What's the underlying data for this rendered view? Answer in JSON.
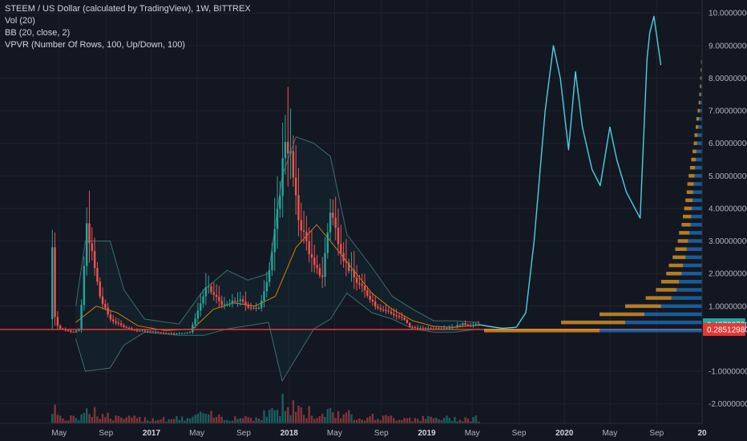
{
  "header": {
    "symbol_line": "STEEM / US Dollar (calculated by TradingView), 1W, BITTREX",
    "indicators": [
      "Vol (20)",
      "BB (20, close, 2)",
      "VPVR (Number Of Rows, 100, Up/Down, 100)"
    ]
  },
  "colors": {
    "background": "#131722",
    "up": "#26a69a",
    "down": "#ef5350",
    "drawing": "#4dd0e1",
    "bb_band": "#3c6e71",
    "bb_basis": "#ff9800",
    "vpvr_up": "#2196f3",
    "vpvr_down": "#f9a825",
    "hline": "#e53935",
    "current_price_tag": "#26a69a",
    "hline_price_tag": "#e53935"
  },
  "chart_data": {
    "type": "candlestick",
    "y_axis": {
      "min": -2.6,
      "max": 10.4,
      "ticks": [
        "10.00000000",
        "9.00000000",
        "8.00000000",
        "7.00000000",
        "6.00000000",
        "5.00000000",
        "4.00000000",
        "3.00000000",
        "2.00000000",
        "1.00000000",
        "-1.00000000",
        "-2.00000000"
      ],
      "tick_values": [
        10,
        9,
        8,
        7,
        6,
        5,
        4,
        3,
        2,
        1,
        -1,
        -2
      ]
    },
    "x_axis": {
      "ticks": [
        {
          "label": "May",
          "bold": false,
          "t": 2016.33
        },
        {
          "label": "Sep",
          "bold": false,
          "t": 2016.67
        },
        {
          "label": "2017",
          "bold": true,
          "t": 2017.0
        },
        {
          "label": "May",
          "bold": false,
          "t": 2017.33
        },
        {
          "label": "Sep",
          "bold": false,
          "t": 2017.67
        },
        {
          "label": "2018",
          "bold": true,
          "t": 2018.0
        },
        {
          "label": "May",
          "bold": false,
          "t": 2018.33
        },
        {
          "label": "Sep",
          "bold": false,
          "t": 2018.67
        },
        {
          "label": "2019",
          "bold": true,
          "t": 2019.0
        },
        {
          "label": "May",
          "bold": false,
          "t": 2019.33
        },
        {
          "label": "Sep",
          "bold": false,
          "t": 2019.67
        },
        {
          "label": "2020",
          "bold": true,
          "t": 2020.0
        },
        {
          "label": "May",
          "bold": false,
          "t": 2020.33
        },
        {
          "label": "Sep",
          "bold": false,
          "t": 2020.67
        },
        {
          "label": "20",
          "bold": true,
          "t": 2021.0
        }
      ]
    },
    "price_anchors": [
      [
        2016.28,
        0.6
      ],
      [
        2016.3,
        2.9
      ],
      [
        2016.32,
        0.5
      ],
      [
        2016.36,
        0.3
      ],
      [
        2016.45,
        0.2
      ],
      [
        2016.5,
        0.3
      ],
      [
        2016.55,
        3.5
      ],
      [
        2016.6,
        2.3
      ],
      [
        2016.65,
        1.2
      ],
      [
        2016.72,
        0.6
      ],
      [
        2016.8,
        0.4
      ],
      [
        2016.9,
        0.25
      ],
      [
        2017.0,
        0.22
      ],
      [
        2017.2,
        0.15
      ],
      [
        2017.3,
        0.2
      ],
      [
        2017.36,
        0.9
      ],
      [
        2017.42,
        1.6
      ],
      [
        2017.48,
        1.3
      ],
      [
        2017.55,
        1.0
      ],
      [
        2017.65,
        1.2
      ],
      [
        2017.72,
        1.0
      ],
      [
        2017.8,
        0.9
      ],
      [
        2017.88,
        2.2
      ],
      [
        2017.94,
        4.0
      ],
      [
        2017.99,
        6.2
      ],
      [
        2018.03,
        5.6
      ],
      [
        2018.08,
        3.8
      ],
      [
        2018.15,
        2.9
      ],
      [
        2018.2,
        2.2
      ],
      [
        2018.26,
        1.9
      ],
      [
        2018.32,
        4.0
      ],
      [
        2018.36,
        3.3
      ],
      [
        2018.42,
        2.4
      ],
      [
        2018.5,
        1.8
      ],
      [
        2018.58,
        1.4
      ],
      [
        2018.65,
        1.0
      ],
      [
        2018.75,
        0.8
      ],
      [
        2018.85,
        0.6
      ],
      [
        2018.9,
        0.35
      ],
      [
        2019.0,
        0.3
      ],
      [
        2019.1,
        0.32
      ],
      [
        2019.2,
        0.35
      ],
      [
        2019.28,
        0.45
      ],
      [
        2019.35,
        0.4
      ],
      [
        2019.38,
        0.43
      ]
    ],
    "bb_basis": [
      [
        2016.45,
        0.5
      ],
      [
        2016.6,
        1.0
      ],
      [
        2016.75,
        0.8
      ],
      [
        2016.9,
        0.4
      ],
      [
        2017.1,
        0.25
      ],
      [
        2017.3,
        0.3
      ],
      [
        2017.45,
        0.9
      ],
      [
        2017.6,
        1.1
      ],
      [
        2017.75,
        1.0
      ],
      [
        2017.9,
        1.3
      ],
      [
        2018.05,
        2.8
      ],
      [
        2018.2,
        3.5
      ],
      [
        2018.3,
        3.0
      ],
      [
        2018.45,
        2.2
      ],
      [
        2018.6,
        1.4
      ],
      [
        2018.75,
        0.9
      ],
      [
        2018.9,
        0.55
      ],
      [
        2019.05,
        0.38
      ],
      [
        2019.2,
        0.35
      ],
      [
        2019.38,
        0.42
      ]
    ],
    "bb_upper": [
      [
        2016.45,
        1.0
      ],
      [
        2016.52,
        3.0
      ],
      [
        2016.7,
        3.0
      ],
      [
        2016.8,
        1.5
      ],
      [
        2016.95,
        0.6
      ],
      [
        2017.2,
        0.45
      ],
      [
        2017.38,
        1.5
      ],
      [
        2017.55,
        2.1
      ],
      [
        2017.7,
        1.8
      ],
      [
        2017.85,
        2.0
      ],
      [
        2017.95,
        5.0
      ],
      [
        2018.05,
        6.2
      ],
      [
        2018.18,
        6.0
      ],
      [
        2018.3,
        5.6
      ],
      [
        2018.42,
        3.2
      ],
      [
        2018.6,
        2.2
      ],
      [
        2018.75,
        1.3
      ],
      [
        2018.9,
        0.9
      ],
      [
        2019.05,
        0.55
      ],
      [
        2019.2,
        0.55
      ],
      [
        2019.38,
        0.5
      ]
    ],
    "bb_lower": [
      [
        2016.45,
        0.0
      ],
      [
        2016.52,
        -1.0
      ],
      [
        2016.7,
        -0.9
      ],
      [
        2016.8,
        -0.2
      ],
      [
        2016.95,
        0.2
      ],
      [
        2017.2,
        0.1
      ],
      [
        2017.38,
        0.1
      ],
      [
        2017.55,
        0.3
      ],
      [
        2017.7,
        0.4
      ],
      [
        2017.85,
        0.5
      ],
      [
        2017.95,
        -1.3
      ],
      [
        2018.05,
        -0.6
      ],
      [
        2018.18,
        0.3
      ],
      [
        2018.3,
        0.6
      ],
      [
        2018.42,
        1.4
      ],
      [
        2018.6,
        0.8
      ],
      [
        2018.75,
        0.6
      ],
      [
        2018.9,
        0.3
      ],
      [
        2019.05,
        0.2
      ],
      [
        2019.2,
        0.2
      ],
      [
        2019.38,
        0.3
      ]
    ],
    "drawing_path": [
      [
        2019.38,
        0.43
      ],
      [
        2019.45,
        0.38
      ],
      [
        2019.55,
        0.32
      ],
      [
        2019.65,
        0.35
      ],
      [
        2019.72,
        0.8
      ],
      [
        2019.78,
        3.0
      ],
      [
        2019.86,
        7.0
      ],
      [
        2019.92,
        9.0
      ],
      [
        2019.97,
        8.0
      ],
      [
        2020.03,
        5.8
      ],
      [
        2020.08,
        8.2
      ],
      [
        2020.13,
        6.5
      ],
      [
        2020.2,
        5.2
      ],
      [
        2020.26,
        4.7
      ],
      [
        2020.33,
        6.5
      ],
      [
        2020.38,
        5.5
      ],
      [
        2020.45,
        4.5
      ],
      [
        2020.55,
        3.7
      ],
      [
        2020.6,
        8.6
      ],
      [
        2020.62,
        9.4
      ],
      [
        2020.65,
        9.9
      ],
      [
        2020.7,
        8.4
      ]
    ],
    "hline_value": 0.2851298,
    "current_price": 0.4272372,
    "price_tags": {
      "current": "0.42723720",
      "hline": "0.28512980"
    },
    "vpvr_levels": [
      [
        0.25,
        0.8,
        0.9
      ],
      [
        0.5,
        0.6,
        0.5
      ],
      [
        0.75,
        0.45,
        0.35
      ],
      [
        1.0,
        0.32,
        0.28
      ],
      [
        1.25,
        0.24,
        0.2
      ],
      [
        1.5,
        0.2,
        0.16
      ],
      [
        1.75,
        0.18,
        0.14
      ],
      [
        2.0,
        0.16,
        0.12
      ],
      [
        2.25,
        0.15,
        0.11
      ],
      [
        2.5,
        0.13,
        0.1
      ],
      [
        2.75,
        0.12,
        0.09
      ],
      [
        3.0,
        0.11,
        0.08
      ],
      [
        3.25,
        0.1,
        0.08
      ],
      [
        3.5,
        0.09,
        0.07
      ],
      [
        3.75,
        0.085,
        0.065
      ],
      [
        4.0,
        0.08,
        0.06
      ],
      [
        4.25,
        0.075,
        0.055
      ],
      [
        4.5,
        0.07,
        0.05
      ],
      [
        4.75,
        0.065,
        0.05
      ],
      [
        5.0,
        0.06,
        0.045
      ],
      [
        5.25,
        0.055,
        0.04
      ],
      [
        5.5,
        0.05,
        0.035
      ],
      [
        5.75,
        0.045,
        0.03
      ],
      [
        6.0,
        0.04,
        0.025
      ],
      [
        6.25,
        0.035,
        0.025
      ],
      [
        6.5,
        0.03,
        0.02
      ],
      [
        6.75,
        0.025,
        0.02
      ],
      [
        7.0,
        0.02,
        0.015
      ],
      [
        7.25,
        0.015,
        0.012
      ],
      [
        7.5,
        0.012,
        0.01
      ],
      [
        7.75,
        0.01,
        0.008
      ],
      [
        8.0,
        0.008,
        0.006
      ],
      [
        8.25,
        0.006,
        0.005
      ],
      [
        8.5,
        0.004,
        0.004
      ]
    ]
  }
}
